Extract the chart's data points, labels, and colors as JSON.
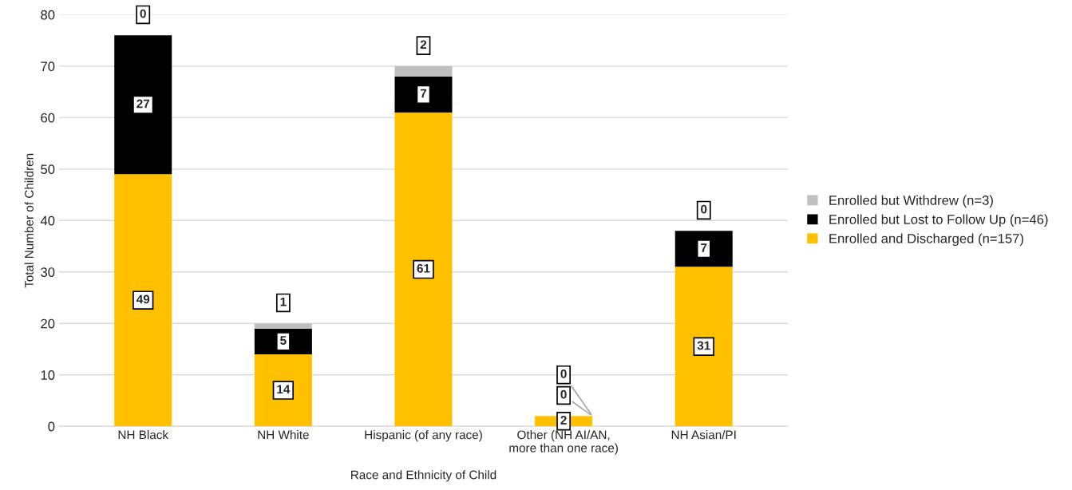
{
  "chart_data": {
    "type": "bar",
    "stacked": true,
    "xlabel": "Race and Ethnicity of Child",
    "ylabel": "Total Number of Children",
    "categories": [
      "NH Black",
      "NH White",
      "Hispanic (of any race)",
      "Other (NH AI/AN,\nmore than one race)",
      "NH Asian/PI"
    ],
    "series": [
      {
        "name": "Enrolled and Discharged (n=157)",
        "color": "#ffc000",
        "values": [
          49,
          14,
          61,
          2,
          31
        ]
      },
      {
        "name": "Enrolled but Lost to Follow Up (n=46)",
        "color": "#000000",
        "values": [
          27,
          5,
          7,
          0,
          7
        ]
      },
      {
        "name": "Enrolled but Withdrew (n=3)",
        "color": "#bfbfbf",
        "values": [
          0,
          1,
          2,
          0,
          0
        ]
      }
    ],
    "ylim": [
      0,
      80
    ],
    "yticks": [
      0,
      10,
      20,
      30,
      40,
      50,
      60,
      70,
      80
    ],
    "grid": "y",
    "legend": "right",
    "data_labels": true
  }
}
